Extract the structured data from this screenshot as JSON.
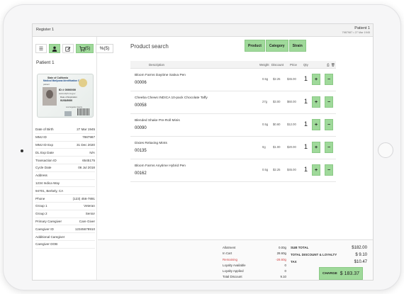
{
  "topbar": {
    "register": "Register 1",
    "patient": "Patient 1",
    "patient_sub": "7987987 • 27 Mar 1945"
  },
  "tabs": [
    {
      "icon": "list-icon",
      "label": ""
    },
    {
      "icon": "person-icon",
      "label": ""
    },
    {
      "icon": "edit-icon",
      "label": ""
    },
    {
      "icon": "cart-icon",
      "label": "(5)"
    },
    {
      "icon": "percent-icon",
      "label": "(5)"
    }
  ],
  "patient_title": "Patient 1",
  "id_card": {
    "state": "State of California",
    "title": "Medical Marijuana Identification Card",
    "holder": "patient",
    "id_number": "ID # 0000000",
    "website": "www.cdph.ca.gov",
    "exp_label": "Date of Expiration",
    "exp_date": "01/01/0000",
    "county": "Los Angeles County",
    "dept": "Dept. of Public Health",
    "phone": "888-511-2299"
  },
  "patient_info": [
    {
      "label": "Date of Birth",
      "value": "27 Mar 1945"
    },
    {
      "label": "MMJ ID",
      "value": "7987987"
    },
    {
      "label": "MMJ ID Exp",
      "value": "31 Dec 2020"
    },
    {
      "label": "DL Exp Date",
      "value": "N/A"
    },
    {
      "label": "Transaction ID",
      "value": "6545175"
    },
    {
      "label": "Cycle Date",
      "value": "06 Jul 2018"
    },
    {
      "label": "Address",
      "value": ""
    },
    {
      "label": "1234 Indica Way",
      "value": ""
    },
    {
      "label": "94701, Berkely, CA",
      "value": ""
    },
    {
      "label": "Phone",
      "value": "(123) 456-7891"
    },
    {
      "label": "Group 1",
      "value": "Veteran"
    },
    {
      "label": "Group 2",
      "value": "Senior"
    },
    {
      "label": "Primary Caregiver",
      "value": "Care Giver"
    },
    {
      "label": "Caregiver ID",
      "value": "12345678910"
    },
    {
      "label": "Additional Caregiver",
      "value": ""
    },
    {
      "label": "Caregiver DOB",
      "value": ""
    }
  ],
  "main": {
    "search_title": "Product search",
    "filters": [
      "Product",
      "Category",
      "Strain"
    ],
    "columns": {
      "description": "Description",
      "weight": "Weight",
      "discount": "Discount",
      "price": "Price",
      "qty": "Qty"
    },
    "products": [
      {
        "name": "Bloom Farms Daytime Sativa Pen",
        "sku": "00006",
        "weight": "0.5g",
        "discount": "$2.25",
        "price": "$45.00",
        "qty": "1"
      },
      {
        "name": "Cheeba Chews INDICA 10-pack Chocolate Taffy",
        "sku": "00058",
        "weight": "27g",
        "discount": "$3.00",
        "price": "$60.00",
        "qty": "1"
      },
      {
        "name": "Blended Shake Pre-Roll Minis",
        "sku": "00090",
        "weight": "0.5g",
        "discount": "$0.60",
        "price": "$12.00",
        "qty": "1"
      },
      {
        "name": "Dixies Relaxing Mints",
        "sku": "00135",
        "weight": "0g",
        "discount": "$1.00",
        "price": "$20.00",
        "qty": "1"
      },
      {
        "name": "Bloom Farms Anytime Hybrid Pen",
        "sku": "00162",
        "weight": "0.5g",
        "discount": "$2.25",
        "price": "$45.00",
        "qty": "1"
      }
    ],
    "plus": "+",
    "minus": "−"
  },
  "summary": {
    "ledger": [
      {
        "label": "Allotment",
        "value": "0.00g"
      },
      {
        "label": "In Cart",
        "value": "28.60g"
      },
      {
        "label": "Remaining",
        "value": "-28.60g",
        "warn": true
      },
      {
        "label": "Loyalty Available",
        "value": "0"
      },
      {
        "label": "Loyalty Applied",
        "value": "0"
      },
      {
        "label": "Total Discount",
        "value": "9.10"
      }
    ],
    "totals": [
      {
        "label": "SUB TOTAL",
        "value": "$182.00"
      },
      {
        "label": "TOTAL DISCOUNT & LOYALTY",
        "value": "$ 9.10"
      },
      {
        "label": "TAX",
        "value": "$10.47"
      }
    ],
    "charge_label": "CHARGE",
    "charge_amount": "$ 183.37"
  },
  "colors": {
    "accent": "#9fd99a",
    "warn": "#d24343"
  }
}
